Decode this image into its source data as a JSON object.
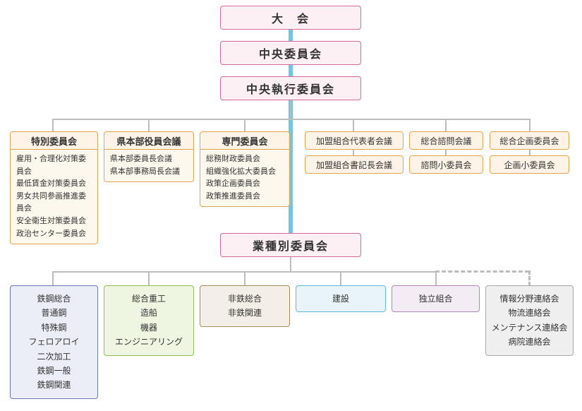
{
  "colors": {
    "top_bg": "#fdf0f4",
    "top_border": "#d86a9a",
    "orange_bg": "#fdf4e7",
    "orange_border": "#e6a34d",
    "orange_sub_bg": "#fdf8ee",
    "connector_thick": "#6fc6e0",
    "connector_thin": "#bcbcbc",
    "blue_bg": "#eceef7",
    "blue_border": "#6a7ab8",
    "green_bg": "#eef6e2",
    "green_border": "#8fbf56",
    "brown_bg": "#f4efe6",
    "brown_border": "#a98c5e",
    "cyan_bg": "#e9f4f8",
    "cyan_border": "#5fb8d8",
    "purple_bg": "#f3ecf4",
    "purple_border": "#b183b8",
    "gray_bg": "#efefef",
    "gray_border": "#a8a8a8"
  },
  "top": {
    "n1": "大　会",
    "n2": "中央委員会",
    "n3": "中央執行委員会",
    "n4": "業種別委員会"
  },
  "row2": {
    "b1": {
      "title": "特別委員会",
      "items": [
        "雇用・合理化対策委員会",
        "最低賃金対策委員会",
        "男女共同参画推進委員会",
        "安全衛生対策委員会",
        "政治センター委員会"
      ]
    },
    "b2": {
      "title": "県本部役員会議",
      "items": [
        "県本部委員長会議",
        "県本部事務局長会議"
      ]
    },
    "b3": {
      "title": "専門委員会",
      "items": [
        "総務財政委員会",
        "組織強化拡大委員会",
        "政策企画委員会",
        "政策推進委員会"
      ]
    },
    "r1a": "加盟組合代表者会議",
    "r1b": "加盟組合書記長会議",
    "r2a": "総合諮問会議",
    "r2b": "諮問小委員会",
    "r3a": "総合企画委員会",
    "r3b": "企画小委員会"
  },
  "industry": {
    "i1": {
      "items": [
        "鉄鋼総合",
        "普通鋼",
        "特殊鋼",
        "フェロアロイ",
        "二次加工",
        "鉄鋼一般",
        "鉄鋼関連"
      ],
      "bg": "#eceef7",
      "border": "#6a7ab8"
    },
    "i2": {
      "items": [
        "総合重工",
        "造船",
        "機器",
        "エンジニアリング"
      ],
      "bg": "#eef6e2",
      "border": "#8fbf56"
    },
    "i3": {
      "items": [
        "非鉄総合",
        "非鉄関連"
      ],
      "bg": "#f4efe6",
      "border": "#a98c5e"
    },
    "i4": {
      "items": [
        "建設"
      ],
      "bg": "#e9f4f8",
      "border": "#5fb8d8"
    },
    "i5": {
      "items": [
        "独立組合"
      ],
      "bg": "#f3ecf4",
      "border": "#b183b8"
    },
    "i6": {
      "items": [
        "情報分野連絡会",
        "物流連絡会",
        "メンテナンス連絡会",
        "病院連絡会"
      ],
      "bg": "#efefef",
      "border": "#a8a8a8"
    }
  }
}
